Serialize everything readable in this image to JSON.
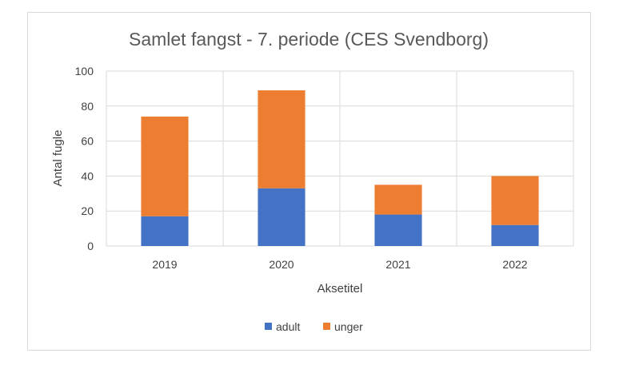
{
  "chart_data": {
    "type": "bar",
    "stacked": true,
    "title": "Samlet fangst - 7. periode (CES Svendborg)",
    "xlabel": "Aksetitel",
    "ylabel": "Antal fugle",
    "categories": [
      "2019",
      "2020",
      "2021",
      "2022"
    ],
    "ylim": [
      0,
      100
    ],
    "yticks": [
      0,
      20,
      40,
      60,
      80,
      100
    ],
    "grid": true,
    "legend_position": "bottom",
    "series": [
      {
        "name": "adult",
        "color": "#4472c4",
        "values": [
          17,
          33,
          18,
          12
        ]
      },
      {
        "name": "unger",
        "color": "#ed7d31",
        "values": [
          57,
          56,
          17,
          28
        ]
      }
    ]
  }
}
